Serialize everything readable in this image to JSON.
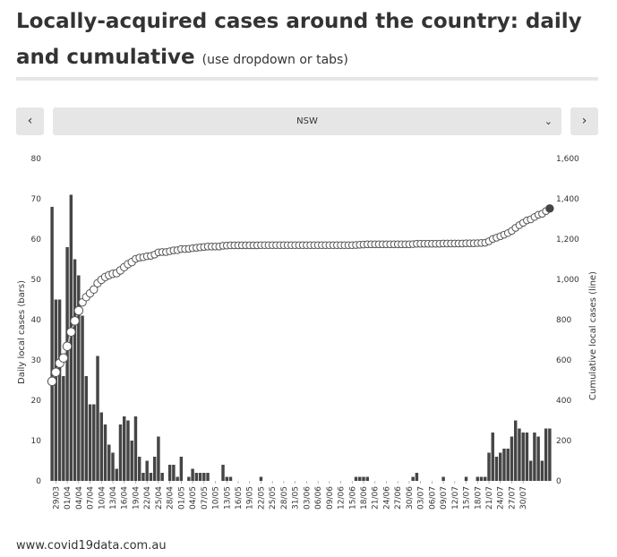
{
  "header": {
    "title": "Locally-acquired cases around the country: daily and cumulative",
    "subtitle": "(use dropdown or tabs)"
  },
  "controls": {
    "prev_label": "‹",
    "next_label": "›",
    "selected_state": "NSW",
    "dropdown_icon": "chevron-down-icon"
  },
  "footer": {
    "source": "www.covid19data.com.au"
  },
  "colors": {
    "bars": "#454545",
    "line": "#cccccc",
    "marker_fill": "#ffffff",
    "marker_last": "#454545",
    "text": "#333333"
  },
  "chart_data": {
    "type": "bar+line",
    "ylabel_left": "Daily local cases (bars)",
    "ylabel_right": "Cumulative local cases (line)",
    "ylim_left": [
      0,
      80
    ],
    "ylim_right": [
      0,
      1600
    ],
    "yticks_left": [
      "0",
      "10",
      "20",
      "30",
      "40",
      "50",
      "60",
      "70",
      "80"
    ],
    "yticks_right": [
      "0",
      "200",
      "400",
      "600",
      "800",
      "1,000",
      "1,200",
      "1,400",
      "1,600"
    ],
    "x_tick_labels": [
      "29/03",
      "01/04",
      "04/04",
      "07/04",
      "10/04",
      "13/04",
      "16/04",
      "19/04",
      "22/04",
      "25/04",
      "28/04",
      "01/05",
      "04/05",
      "07/05",
      "10/05",
      "13/05",
      "16/05",
      "19/05",
      "22/05",
      "25/05",
      "28/05",
      "31/05",
      "03/06",
      "06/06",
      "09/06",
      "12/06",
      "15/06",
      "18/06",
      "21/06",
      "24/06",
      "27/06",
      "30/06",
      "03/07",
      "06/07",
      "09/07",
      "12/07",
      "15/07",
      "18/07",
      "21/07",
      "24/07",
      "27/07",
      "30/07"
    ],
    "first_date": "28/03",
    "daily_cases": [
      68,
      45,
      45,
      26,
      58,
      71,
      55,
      51,
      41,
      26,
      19,
      19,
      31,
      17,
      14,
      9,
      7,
      3,
      14,
      16,
      15,
      10,
      16,
      6,
      2,
      5,
      2,
      6,
      11,
      2,
      0,
      4,
      4,
      1,
      6,
      0,
      1,
      3,
      2,
      2,
      2,
      2,
      0,
      0,
      0,
      4,
      1,
      1,
      0,
      0,
      0,
      0,
      0,
      0,
      0,
      1,
      0,
      0,
      0,
      0,
      0,
      0,
      0,
      0,
      0,
      0,
      0,
      0,
      0,
      0,
      0,
      0,
      0,
      0,
      0,
      0,
      0,
      0,
      0,
      0,
      1,
      1,
      1,
      1,
      0,
      0,
      0,
      0,
      0,
      0,
      0,
      0,
      0,
      0,
      0,
      1,
      2,
      0,
      0,
      0,
      0,
      0,
      0,
      1,
      0,
      0,
      0,
      0,
      0,
      1,
      0,
      0,
      1,
      1,
      1,
      7,
      12,
      6,
      7,
      8,
      8,
      11,
      15,
      13,
      12,
      12,
      5,
      12,
      11,
      5,
      13,
      13
    ],
    "cumulative_cases": [
      494,
      539,
      584,
      610,
      668,
      739,
      794,
      845,
      886,
      912,
      931,
      950,
      981,
      998,
      1012,
      1021,
      1028,
      1031,
      1045,
      1061,
      1076,
      1086,
      1102,
      1108,
      1110,
      1115,
      1117,
      1123,
      1134,
      1136,
      1136,
      1140,
      1144,
      1145,
      1151,
      1151,
      1152,
      1155,
      1157,
      1159,
      1161,
      1163,
      1163,
      1163,
      1163,
      1167,
      1168,
      1169,
      1169,
      1169,
      1169,
      1169,
      1169,
      1169,
      1169,
      1170,
      1170,
      1170,
      1170,
      1170,
      1170,
      1170,
      1170,
      1170,
      1170,
      1170,
      1170,
      1170,
      1170,
      1170,
      1170,
      1170,
      1170,
      1170,
      1170,
      1170,
      1170,
      1170,
      1170,
      1170,
      1171,
      1172,
      1173,
      1174,
      1174,
      1174,
      1174,
      1174,
      1174,
      1174,
      1174,
      1174,
      1174,
      1174,
      1174,
      1175,
      1177,
      1177,
      1177,
      1177,
      1177,
      1177,
      1177,
      1178,
      1178,
      1178,
      1178,
      1178,
      1178,
      1179,
      1179,
      1179,
      1180,
      1181,
      1182,
      1189,
      1201,
      1207,
      1214,
      1222,
      1230,
      1241,
      1256,
      1269,
      1281,
      1293,
      1298,
      1310,
      1321,
      1326,
      1339,
      1352
    ]
  }
}
